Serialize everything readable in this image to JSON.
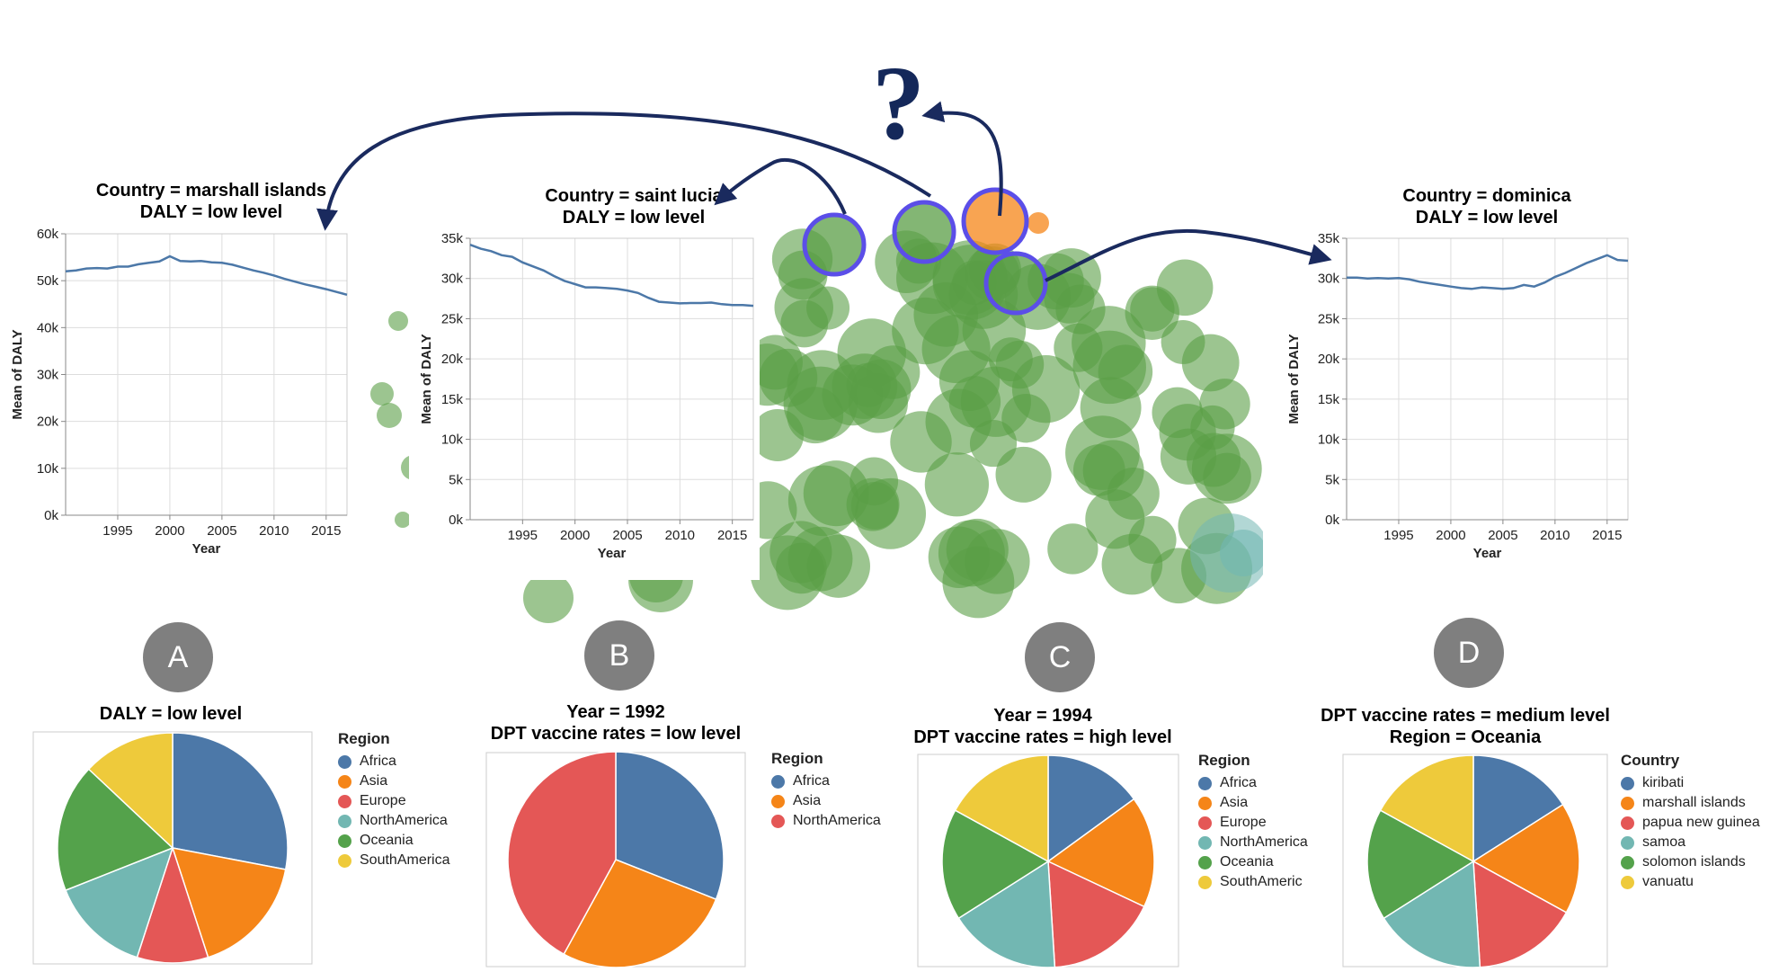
{
  "question_mark": "?",
  "badges": [
    "A",
    "B",
    "C",
    "D"
  ],
  "colors": {
    "blue": "#4c78a8",
    "orange": "#f58518",
    "red": "#e45756",
    "teal": "#72b7b2",
    "green": "#54a24b",
    "yellow": "#eeca3b",
    "bubble_green": "#5a9e46",
    "ring": "#5b4ee8",
    "arrow": "#1a2a5e"
  },
  "chart_data": [
    {
      "id": "line-a",
      "type": "line",
      "title": [
        "Country = marshall islands",
        "DALY = low level"
      ],
      "xlabel": "Year",
      "ylabel": "Mean of DALY",
      "xlim": [
        1990,
        2017
      ],
      "ylim": [
        0,
        60000
      ],
      "xticks": [
        "1995",
        "2000",
        "2005",
        "2010",
        "2015"
      ],
      "yticks": [
        "0k",
        "10k",
        "20k",
        "30k",
        "40k",
        "50k",
        "60k"
      ],
      "x": [
        1990,
        1991,
        1992,
        1993,
        1994,
        1995,
        1996,
        1997,
        1998,
        1999,
        2000,
        2001,
        2002,
        2003,
        2004,
        2005,
        2006,
        2007,
        2008,
        2009,
        2010,
        2011,
        2012,
        2013,
        2014,
        2015,
        2016,
        2017
      ],
      "y": [
        52000,
        52200,
        52600,
        52700,
        52600,
        53000,
        53000,
        53500,
        53800,
        54100,
        55200,
        54200,
        54100,
        54200,
        53900,
        53800,
        53400,
        52800,
        52200,
        51700,
        51100,
        50400,
        49800,
        49200,
        48700,
        48200,
        47600,
        47000
      ]
    },
    {
      "id": "line-b",
      "type": "line",
      "title": [
        "Country = saint lucia",
        "DALY = low level"
      ],
      "xlabel": "Year",
      "ylabel": "Mean of DALY",
      "xlim": [
        1990,
        2017
      ],
      "ylim": [
        0,
        35000
      ],
      "xticks": [
        "1995",
        "2000",
        "2005",
        "2010",
        "2015"
      ],
      "yticks": [
        "0k",
        "5k",
        "10k",
        "15k",
        "20k",
        "25k",
        "30k",
        "35k"
      ],
      "x": [
        1990,
        1991,
        1992,
        1993,
        1994,
        1995,
        1996,
        1997,
        1998,
        1999,
        2000,
        2001,
        2002,
        2003,
        2004,
        2005,
        2006,
        2007,
        2008,
        2009,
        2010,
        2011,
        2012,
        2013,
        2014,
        2015,
        2016,
        2017
      ],
      "y": [
        34200,
        33700,
        33400,
        32900,
        32700,
        32000,
        31500,
        31000,
        30300,
        29700,
        29300,
        28900,
        28900,
        28800,
        28700,
        28500,
        28200,
        27600,
        27100,
        27000,
        26900,
        26950,
        26950,
        27000,
        26800,
        26700,
        26700,
        26600
      ]
    },
    {
      "id": "line-d",
      "type": "line",
      "title": [
        "Country = dominica",
        "DALY = low level"
      ],
      "xlabel": "Year",
      "ylabel": "Mean of DALY",
      "xlim": [
        1990,
        2017
      ],
      "ylim": [
        0,
        35000
      ],
      "xticks": [
        "1995",
        "2000",
        "2005",
        "2010",
        "2015"
      ],
      "yticks": [
        "0k",
        "5k",
        "10k",
        "15k",
        "20k",
        "25k",
        "30k",
        "35k"
      ],
      "x": [
        1990,
        1991,
        1992,
        1993,
        1994,
        1995,
        1996,
        1997,
        1998,
        1999,
        2000,
        2001,
        2002,
        2003,
        2004,
        2005,
        2006,
        2007,
        2008,
        2009,
        2010,
        2011,
        2012,
        2013,
        2014,
        2015,
        2016,
        2017
      ],
      "y": [
        30100,
        30100,
        30000,
        30050,
        30000,
        30050,
        29900,
        29600,
        29400,
        29200,
        29000,
        28800,
        28700,
        28900,
        28800,
        28700,
        28800,
        29200,
        29000,
        29500,
        30200,
        30700,
        31300,
        31900,
        32400,
        32900,
        32300,
        32200
      ]
    },
    {
      "id": "pie-a",
      "type": "pie",
      "title": [
        "DALY = low level"
      ],
      "legend_title": "Region",
      "labels": [
        "Africa",
        "Asia",
        "Europe",
        "NorthAmerica",
        "Oceania",
        "SouthAmerica"
      ],
      "values": [
        28,
        17,
        10,
        14,
        18,
        13
      ]
    },
    {
      "id": "pie-b",
      "type": "pie",
      "title": [
        "Year = 1992",
        "DPT vaccine rates = low level"
      ],
      "legend_title": "Region",
      "labels": [
        "Africa",
        "Asia",
        "NorthAmerica"
      ],
      "values": [
        31,
        27,
        42
      ]
    },
    {
      "id": "pie-c",
      "type": "pie",
      "title": [
        "Year = 1994",
        "DPT vaccine rates = high level"
      ],
      "legend_title": "Region",
      "labels": [
        "Africa",
        "Asia",
        "Europe",
        "NorthAmerica",
        "Oceania",
        "SouthAmerica"
      ],
      "legend_labels": [
        "Africa",
        "Asia",
        "Europe",
        "NorthAmerica",
        "Oceania",
        "SouthAmeric"
      ],
      "values": [
        15,
        17,
        17,
        17,
        17,
        17
      ]
    },
    {
      "id": "pie-d",
      "type": "pie",
      "title": [
        "DPT vaccine rates = medium level",
        "Region = Oceania"
      ],
      "legend_title": "Country",
      "labels": [
        "kiribati",
        "marshall islands",
        "papua new guinea",
        "samoa",
        "solomon islands",
        "vanuatu"
      ],
      "legend_labels": [
        "kiribati",
        "marshall islands",
        "papua new guinea",
        "samoa",
        "solomon islands",
        "vanuatu"
      ],
      "values": [
        16,
        17,
        16,
        17,
        17,
        17
      ]
    }
  ]
}
